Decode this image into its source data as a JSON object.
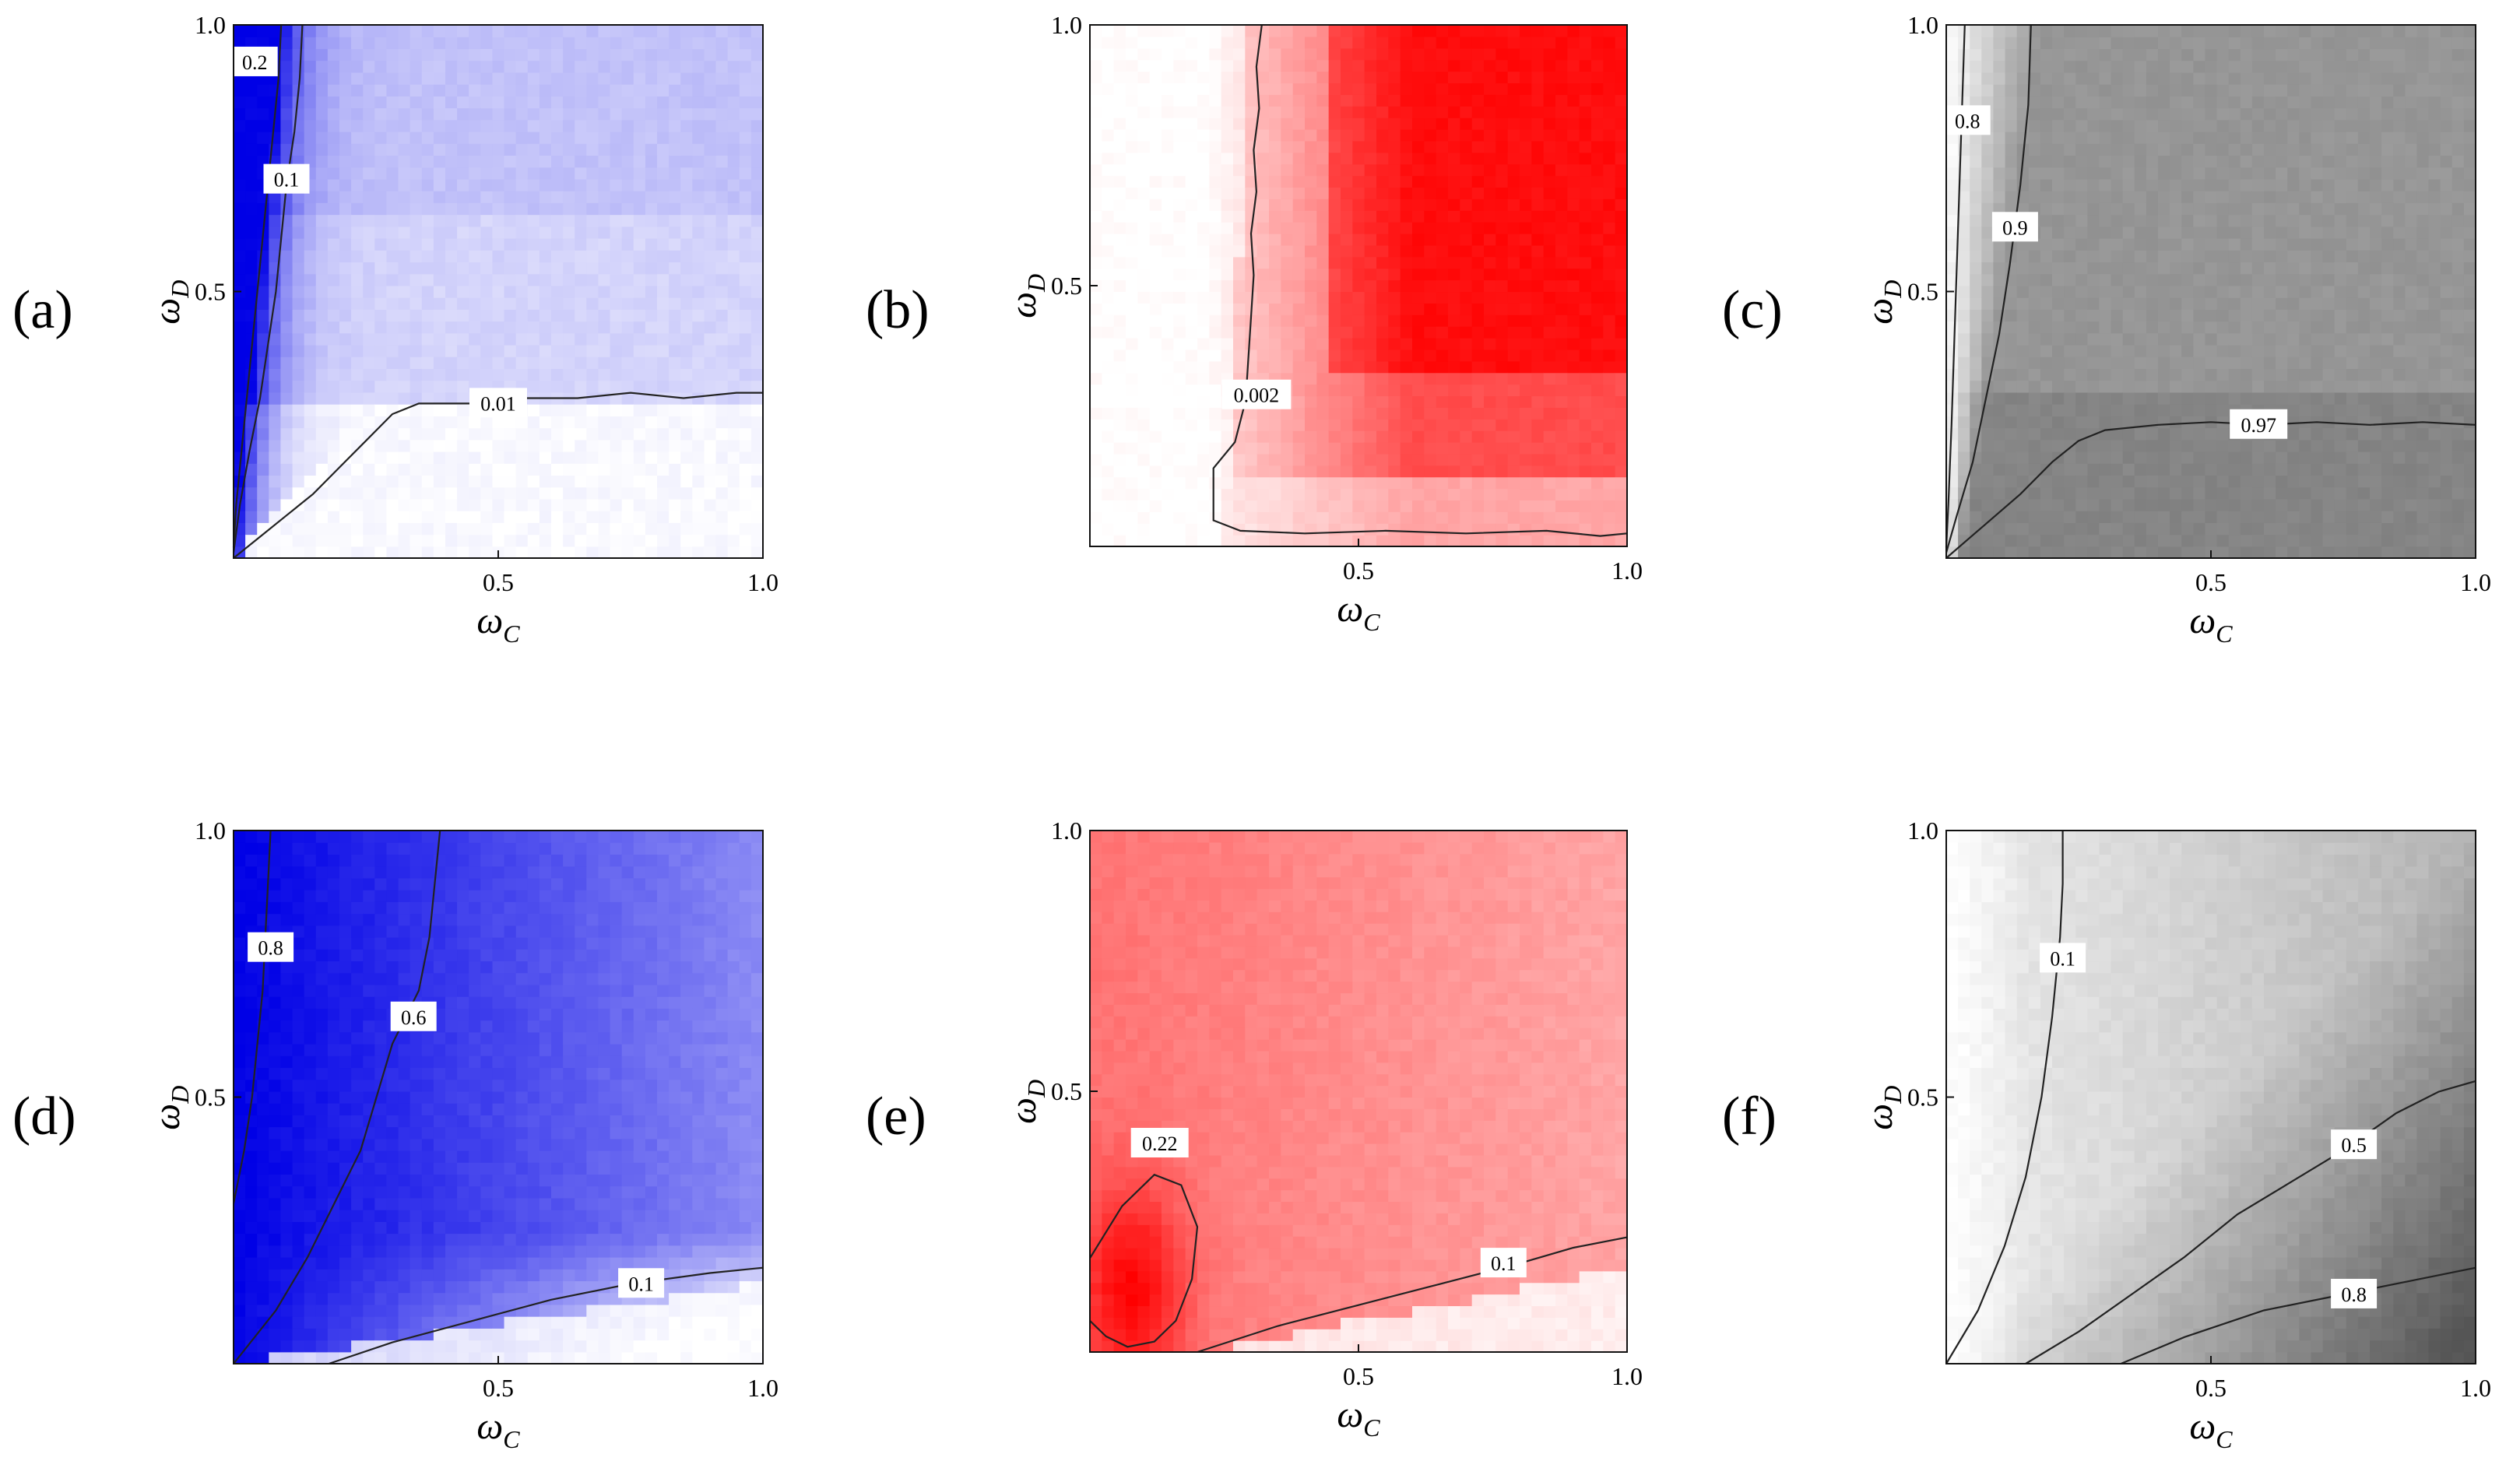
{
  "figure": {
    "panels": [
      {
        "id": "a",
        "label": "(a)",
        "color": "#0000e6",
        "bg": "#ffffff"
      },
      {
        "id": "b",
        "label": "(b)",
        "color": "#ff0000",
        "bg": "#ffffff"
      },
      {
        "id": "c",
        "label": "(c)",
        "color": "#555555",
        "bg": "#ffffff"
      },
      {
        "id": "d",
        "label": "(d)",
        "color": "#0000e6",
        "bg": "#ffffff"
      },
      {
        "id": "e",
        "label": "(e)",
        "color": "#ff0000",
        "bg": "#ffffff"
      },
      {
        "id": "f",
        "label": "(f)",
        "color": "#555555",
        "bg": "#ffffff"
      }
    ]
  },
  "chart_data": [
    {
      "panel": "a",
      "type": "heatmap",
      "xlabel": "ωC",
      "ylabel": "ωD",
      "xlim": [
        0,
        1
      ],
      "ylim": [
        0,
        1
      ],
      "x_ticks": [
        "0.5",
        "1.0"
      ],
      "y_ticks": [
        "0.5",
        "1.0"
      ],
      "colormap": "white-blue",
      "contours": [
        {
          "label": "0.2",
          "label_at": [
            0.04,
            0.93
          ],
          "points": [
            [
              0.09,
              1.0
            ],
            [
              0.085,
              0.9
            ],
            [
              0.075,
              0.8
            ],
            [
              0.065,
              0.7
            ],
            [
              0.055,
              0.6
            ],
            [
              0.045,
              0.5
            ],
            [
              0.035,
              0.4
            ],
            [
              0.025,
              0.3
            ],
            [
              0.015,
              0.2
            ],
            [
              0.005,
              0.1
            ],
            [
              0.0,
              0.02
            ]
          ]
        },
        {
          "label": "0.1",
          "label_at": [
            0.1,
            0.71
          ],
          "points": [
            [
              0.13,
              1.0
            ],
            [
              0.125,
              0.9
            ],
            [
              0.115,
              0.8
            ],
            [
              0.1,
              0.7
            ],
            [
              0.09,
              0.6
            ],
            [
              0.08,
              0.5
            ],
            [
              0.065,
              0.4
            ],
            [
              0.05,
              0.3
            ],
            [
              0.03,
              0.2
            ],
            [
              0.012,
              0.1
            ],
            [
              0.0,
              0.01
            ]
          ]
        },
        {
          "label": "0.01",
          "label_at": [
            0.5,
            0.29
          ],
          "points": [
            [
              0.0,
              0.0
            ],
            [
              0.05,
              0.04
            ],
            [
              0.1,
              0.08
            ],
            [
              0.15,
              0.12
            ],
            [
              0.2,
              0.17
            ],
            [
              0.25,
              0.22
            ],
            [
              0.3,
              0.27
            ],
            [
              0.35,
              0.29
            ],
            [
              0.45,
              0.29
            ],
            [
              0.55,
              0.3
            ],
            [
              0.65,
              0.3
            ],
            [
              0.75,
              0.31
            ],
            [
              0.85,
              0.3
            ],
            [
              0.95,
              0.31
            ],
            [
              1.0,
              0.31
            ]
          ]
        }
      ]
    },
    {
      "panel": "b",
      "type": "heatmap",
      "xlabel": "ωC",
      "ylabel": "ωD",
      "xlim": [
        0,
        1
      ],
      "ylim": [
        0,
        1
      ],
      "x_ticks": [
        "0.5",
        "1.0"
      ],
      "y_ticks": [
        "0.5",
        "1.0"
      ],
      "colormap": "white-red",
      "contours": [
        {
          "label": "0.002",
          "label_at": [
            0.31,
            0.29
          ],
          "points": [
            [
              0.32,
              1.0
            ],
            [
              0.31,
              0.92
            ],
            [
              0.315,
              0.84
            ],
            [
              0.305,
              0.76
            ],
            [
              0.31,
              0.68
            ],
            [
              0.3,
              0.6
            ],
            [
              0.305,
              0.52
            ],
            [
              0.3,
              0.44
            ],
            [
              0.295,
              0.36
            ],
            [
              0.29,
              0.28
            ],
            [
              0.27,
              0.2
            ],
            [
              0.23,
              0.15
            ],
            [
              0.23,
              0.05
            ],
            [
              0.28,
              0.03
            ],
            [
              0.4,
              0.025
            ],
            [
              0.55,
              0.03
            ],
            [
              0.7,
              0.025
            ],
            [
              0.85,
              0.03
            ],
            [
              0.95,
              0.02
            ],
            [
              1.0,
              0.025
            ]
          ]
        }
      ]
    },
    {
      "panel": "c",
      "type": "heatmap",
      "xlabel": "ωC",
      "ylabel": "ωD",
      "xlim": [
        0,
        1
      ],
      "ylim": [
        0,
        1
      ],
      "x_ticks": [
        "0.5",
        "1.0"
      ],
      "y_ticks": [
        "0.5",
        "1.0"
      ],
      "colormap": "white-gray",
      "contours": [
        {
          "label": "0.8",
          "label_at": [
            0.04,
            0.82
          ],
          "points": [
            [
              0.035,
              1.0
            ],
            [
              0.03,
              0.85
            ],
            [
              0.025,
              0.7
            ],
            [
              0.02,
              0.55
            ],
            [
              0.015,
              0.4
            ],
            [
              0.01,
              0.25
            ],
            [
              0.004,
              0.1
            ],
            [
              0.0,
              0.02
            ]
          ]
        },
        {
          "label": "0.9",
          "label_at": [
            0.13,
            0.62
          ],
          "points": [
            [
              0.16,
              1.0
            ],
            [
              0.155,
              0.85
            ],
            [
              0.14,
              0.7
            ],
            [
              0.12,
              0.55
            ],
            [
              0.1,
              0.42
            ],
            [
              0.075,
              0.3
            ],
            [
              0.05,
              0.18
            ],
            [
              0.02,
              0.08
            ],
            [
              0.0,
              0.01
            ]
          ]
        },
        {
          "label": "0.97",
          "label_at": [
            0.59,
            0.25
          ],
          "points": [
            [
              0.0,
              0.0
            ],
            [
              0.07,
              0.06
            ],
            [
              0.14,
              0.12
            ],
            [
              0.2,
              0.18
            ],
            [
              0.25,
              0.22
            ],
            [
              0.3,
              0.24
            ],
            [
              0.4,
              0.25
            ],
            [
              0.5,
              0.255
            ],
            [
              0.6,
              0.25
            ],
            [
              0.7,
              0.255
            ],
            [
              0.8,
              0.25
            ],
            [
              0.9,
              0.255
            ],
            [
              1.0,
              0.25
            ]
          ]
        }
      ]
    },
    {
      "panel": "d",
      "type": "heatmap",
      "xlabel": "ωC",
      "ylabel": "ωD",
      "xlim": [
        0,
        1
      ],
      "ylim": [
        0,
        1
      ],
      "x_ticks": [
        "0.5",
        "1.0"
      ],
      "y_ticks": [
        "0.5",
        "1.0"
      ],
      "colormap": "white-blue",
      "contours": [
        {
          "label": "0.8",
          "label_at": [
            0.07,
            0.78
          ],
          "points": [
            [
              0.07,
              1.0
            ],
            [
              0.065,
              0.9
            ],
            [
              0.06,
              0.8
            ],
            [
              0.055,
              0.7
            ],
            [
              0.045,
              0.6
            ],
            [
              0.035,
              0.5
            ],
            [
              0.02,
              0.4
            ],
            [
              0.0,
              0.3
            ]
          ]
        },
        {
          "label": "0.6",
          "label_at": [
            0.34,
            0.65
          ],
          "points": [
            [
              0.39,
              1.0
            ],
            [
              0.38,
              0.9
            ],
            [
              0.37,
              0.8
            ],
            [
              0.35,
              0.7
            ],
            [
              0.3,
              0.6
            ],
            [
              0.27,
              0.5
            ],
            [
              0.24,
              0.4
            ],
            [
              0.19,
              0.3
            ],
            [
              0.14,
              0.2
            ],
            [
              0.08,
              0.1
            ],
            [
              0.0,
              0.0
            ]
          ]
        },
        {
          "label": "0.1",
          "label_at": [
            0.77,
            0.15
          ],
          "points": [
            [
              0.18,
              0.0
            ],
            [
              0.3,
              0.04
            ],
            [
              0.45,
              0.08
            ],
            [
              0.6,
              0.12
            ],
            [
              0.75,
              0.15
            ],
            [
              0.9,
              0.17
            ],
            [
              1.0,
              0.18
            ]
          ]
        }
      ]
    },
    {
      "panel": "e",
      "type": "heatmap",
      "xlabel": "ωC",
      "ylabel": "ωD",
      "xlim": [
        0,
        1
      ],
      "ylim": [
        0,
        1
      ],
      "x_ticks": [
        "0.5",
        "1.0"
      ],
      "y_ticks": [
        "0.5",
        "1.0"
      ],
      "colormap": "white-red",
      "contours": [
        {
          "label": "0.22",
          "label_at": [
            0.13,
            0.4
          ],
          "points": [
            [
              0.0,
              0.18
            ],
            [
              0.06,
              0.28
            ],
            [
              0.12,
              0.34
            ],
            [
              0.17,
              0.32
            ],
            [
              0.2,
              0.24
            ],
            [
              0.19,
              0.14
            ],
            [
              0.16,
              0.06
            ],
            [
              0.12,
              0.02
            ],
            [
              0.07,
              0.01
            ],
            [
              0.03,
              0.03
            ],
            [
              0.0,
              0.06
            ]
          ]
        },
        {
          "label": "0.1",
          "label_at": [
            0.77,
            0.17
          ],
          "points": [
            [
              0.2,
              0.0
            ],
            [
              0.35,
              0.05
            ],
            [
              0.5,
              0.09
            ],
            [
              0.65,
              0.13
            ],
            [
              0.8,
              0.17
            ],
            [
              0.9,
              0.2
            ],
            [
              1.0,
              0.22
            ]
          ]
        }
      ]
    },
    {
      "panel": "f",
      "type": "heatmap",
      "xlabel": "ωC",
      "ylabel": "ωD",
      "xlim": [
        0,
        1
      ],
      "ylim": [
        0,
        1
      ],
      "x_ticks": [
        "0.5",
        "1.0"
      ],
      "y_ticks": [
        "0.5",
        "1.0"
      ],
      "colormap": "white-gray",
      "contours": [
        {
          "label": "0.1",
          "label_at": [
            0.22,
            0.76
          ],
          "points": [
            [
              0.22,
              1.0
            ],
            [
              0.22,
              0.9
            ],
            [
              0.215,
              0.8
            ],
            [
              0.2,
              0.65
            ],
            [
              0.18,
              0.5
            ],
            [
              0.15,
              0.35
            ],
            [
              0.11,
              0.22
            ],
            [
              0.06,
              0.1
            ],
            [
              0.0,
              0.0
            ]
          ]
        },
        {
          "label": "0.5",
          "label_at": [
            0.77,
            0.41
          ],
          "points": [
            [
              0.15,
              0.0
            ],
            [
              0.25,
              0.06
            ],
            [
              0.35,
              0.13
            ],
            [
              0.45,
              0.2
            ],
            [
              0.55,
              0.28
            ],
            [
              0.65,
              0.34
            ],
            [
              0.75,
              0.4
            ],
            [
              0.85,
              0.47
            ],
            [
              0.93,
              0.51
            ],
            [
              1.0,
              0.53
            ]
          ]
        },
        {
          "label": "0.8",
          "label_at": [
            0.77,
            0.13
          ],
          "points": [
            [
              0.33,
              0.0
            ],
            [
              0.45,
              0.05
            ],
            [
              0.6,
              0.1
            ],
            [
              0.75,
              0.13
            ],
            [
              0.9,
              0.16
            ],
            [
              1.0,
              0.18
            ]
          ]
        }
      ]
    }
  ]
}
